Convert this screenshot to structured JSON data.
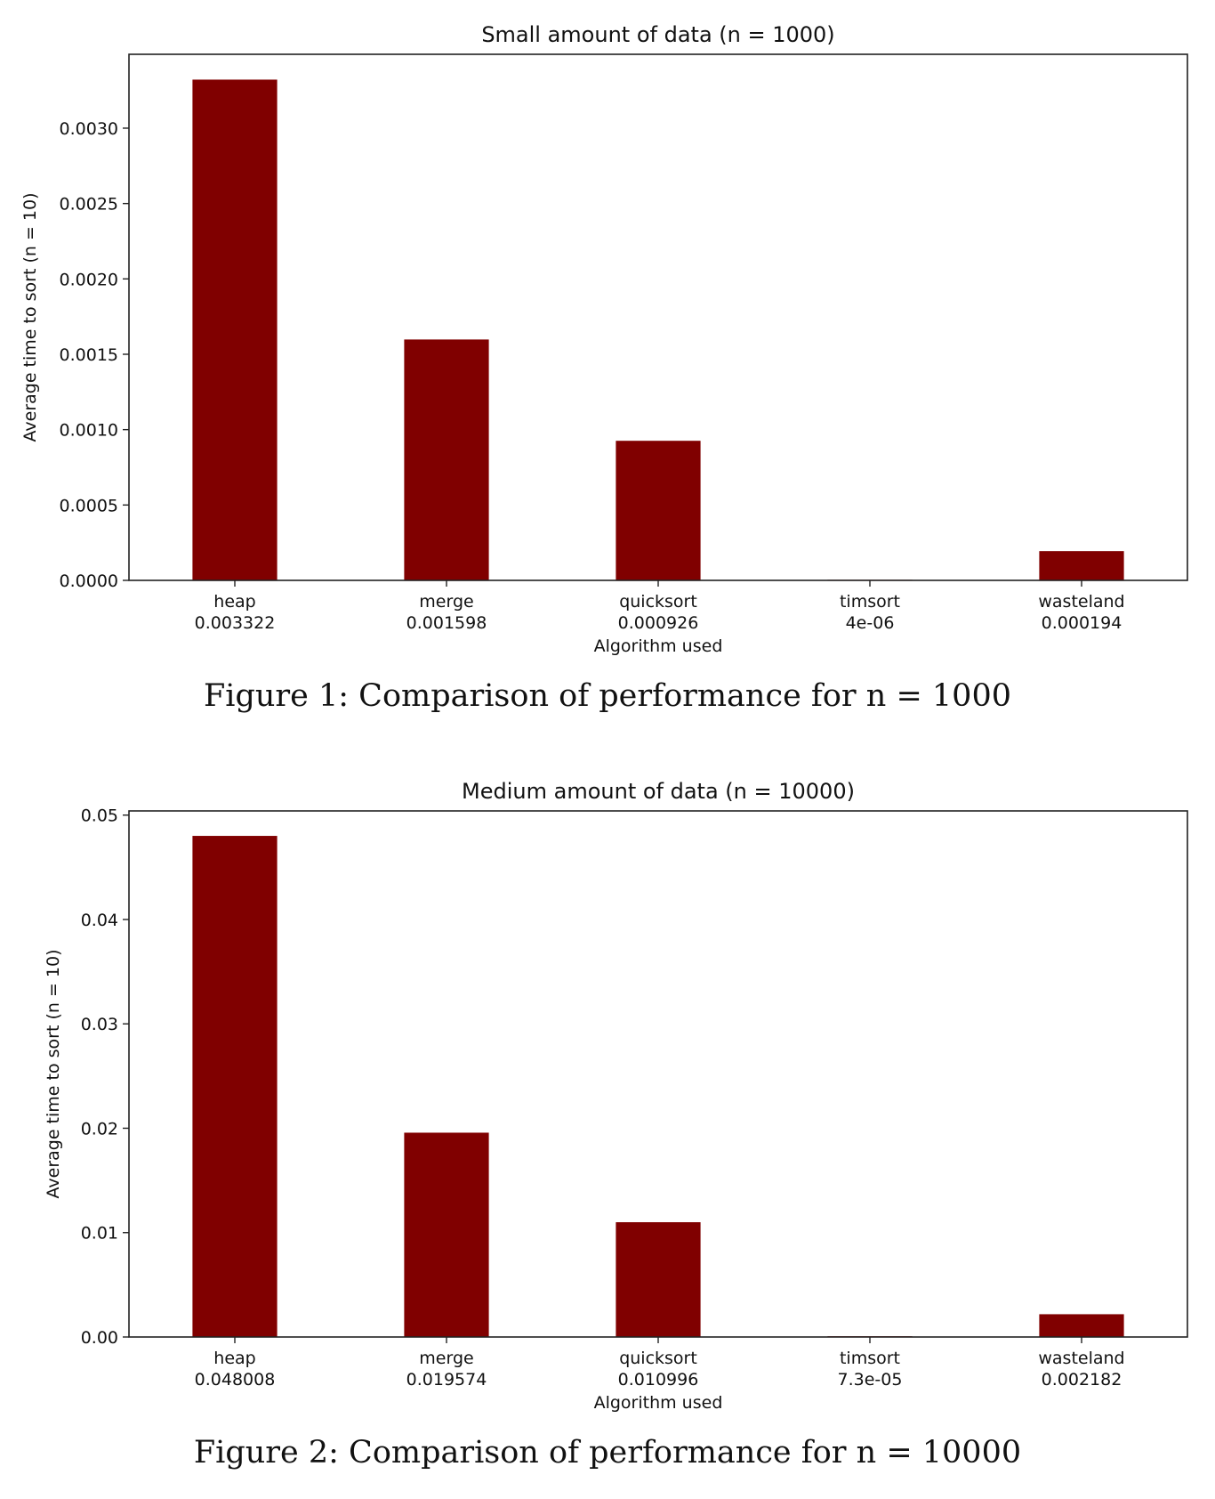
{
  "figures": [
    {
      "caption": "Figure 1: Comparison of performance for n = 1000",
      "chart_data": {
        "type": "bar",
        "title": "Small amount of data (n = 1000)",
        "xlabel": "Algorithm used",
        "ylabel": "Average time to sort (n = 10)",
        "categories": [
          "heap",
          "merge",
          "quicksort",
          "timsort",
          "wasteland"
        ],
        "value_labels": [
          "0.003322",
          "0.001598",
          "0.000926",
          "4e-06",
          "0.000194"
        ],
        "values": [
          0.003322,
          0.001598,
          0.000926,
          4e-06,
          0.000194
        ],
        "yticks": [
          0.0,
          0.0005,
          0.001,
          0.0015,
          0.002,
          0.0025,
          0.003
        ],
        "ytick_labels": [
          "0.0000",
          "0.0005",
          "0.0010",
          "0.0015",
          "0.0020",
          "0.0025",
          "0.0030"
        ],
        "ylim": [
          0,
          0.00349
        ],
        "grid": false,
        "bar_color": "#800000"
      }
    },
    {
      "caption": "Figure 2: Comparison of performance for n = 10000",
      "chart_data": {
        "type": "bar",
        "title": "Medium amount of data (n = 10000)",
        "xlabel": "Algorithm used",
        "ylabel": "Average time to sort (n = 10)",
        "categories": [
          "heap",
          "merge",
          "quicksort",
          "timsort",
          "wasteland"
        ],
        "value_labels": [
          "0.048008",
          "0.019574",
          "0.010996",
          "7.3e-05",
          "0.002182"
        ],
        "values": [
          0.048008,
          0.019574,
          0.010996,
          7.3e-05,
          0.002182
        ],
        "yticks": [
          0.0,
          0.01,
          0.02,
          0.03,
          0.04,
          0.05
        ],
        "ytick_labels": [
          "0.00",
          "0.01",
          "0.02",
          "0.03",
          "0.04",
          "0.05"
        ],
        "ylim": [
          0,
          0.0504
        ],
        "grid": false,
        "bar_color": "#800000"
      }
    }
  ]
}
